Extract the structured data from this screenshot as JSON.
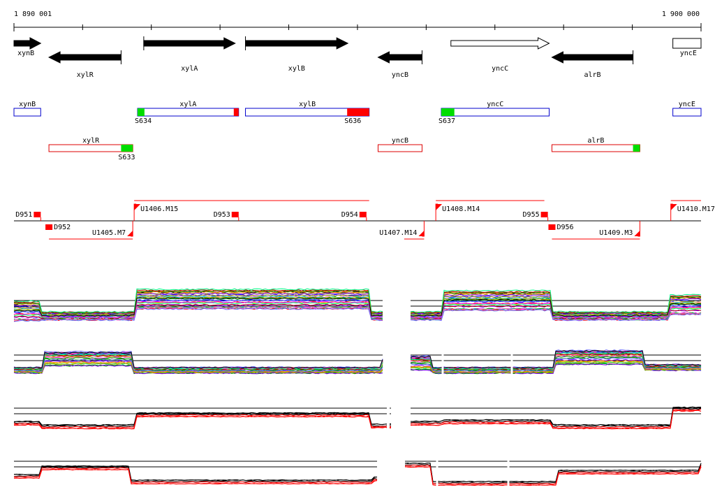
{
  "ruler": {
    "start_label": "1 890 001",
    "end_label": "1 900 000"
  },
  "genes": [
    {
      "name": "xynB",
      "strand": "+",
      "start": 1890001,
      "end": 1890390,
      "filled": true
    },
    {
      "name": "xylR",
      "strand": "-",
      "start": 1890510,
      "end": 1891560,
      "filled": true
    },
    {
      "name": "xylA",
      "strand": "+",
      "start": 1891890,
      "end": 1893220,
      "filled": true
    },
    {
      "name": "xylB",
      "strand": "+",
      "start": 1893370,
      "end": 1894860,
      "filled": true
    },
    {
      "name": "yncB",
      "strand": "-",
      "start": 1895300,
      "end": 1895940,
      "filled": true
    },
    {
      "name": "yncC",
      "strand": "+",
      "start": 1896360,
      "end": 1897790,
      "filled": false
    },
    {
      "name": "alrB",
      "strand": "-",
      "start": 1897830,
      "end": 1899010,
      "filled": true
    },
    {
      "name": "yncE",
      "strand": "+",
      "start": 1899590,
      "end": 1900000,
      "filled": false
    }
  ],
  "transcripts_upper": [
    {
      "name": "xynB",
      "start": 1890001,
      "end": 1890390
    },
    {
      "name": "xylA",
      "start": 1891800,
      "end": 1893270
    },
    {
      "name": "xylB",
      "start": 1893370,
      "end": 1895170
    },
    {
      "name": "yncC",
      "start": 1896220,
      "end": 1897790
    },
    {
      "name": "yncE",
      "start": 1899590,
      "end": 1900000
    }
  ],
  "transcripts_lower": [
    {
      "name": "xylR",
      "start": 1890510,
      "end": 1891730
    },
    {
      "name": "yncB",
      "start": 1895300,
      "end": 1895940
    },
    {
      "name": "alrB",
      "start": 1897830,
      "end": 1899110
    }
  ],
  "signals_upper": [
    {
      "label": "S634",
      "start": 1891800,
      "end": 1891900,
      "color": "#00dd00"
    },
    {
      "label": "",
      "start": 1893200,
      "end": 1893270,
      "color": "#ff0000"
    },
    {
      "label": "S636",
      "start": 1894850,
      "end": 1895170,
      "color": "#ff0000"
    },
    {
      "label": "S637",
      "start": 1896220,
      "end": 1896410,
      "color": "#00dd00"
    }
  ],
  "signals_lower": [
    {
      "label": "S633",
      "start": 1891560,
      "end": 1891730,
      "color": "#00dd00"
    },
    {
      "label": "",
      "start": 1899010,
      "end": 1899110,
      "color": "#00dd00"
    }
  ],
  "segments": [
    {
      "label": "D951",
      "pos": 1890340,
      "side": "above"
    },
    {
      "label": "D952",
      "pos": 1890510,
      "side": "below"
    },
    {
      "label": "D953",
      "pos": 1893220,
      "side": "above"
    },
    {
      "label": "D954",
      "pos": 1895080,
      "side": "above"
    },
    {
      "label": "D955",
      "pos": 1897720,
      "side": "above"
    },
    {
      "label": "D956",
      "pos": 1897830,
      "side": "below"
    }
  ],
  "upregions": [
    {
      "label": "U1405.M7",
      "start": 1890510,
      "end": 1891730,
      "side": "below"
    },
    {
      "label": "U1406.M15",
      "start": 1891750,
      "end": 1895170,
      "side": "above"
    },
    {
      "label": "U1407.M14",
      "start": 1895680,
      "end": 1895970,
      "side": "below"
    },
    {
      "label": "U1408.M14",
      "start": 1896140,
      "end": 1897720,
      "side": "above"
    },
    {
      "label": "U1409.M3",
      "start": 1897830,
      "end": 1899110,
      "side": "below"
    },
    {
      "label": "U1410.M17",
      "start": 1899560,
      "end": 1900000,
      "side": "above"
    }
  ],
  "colors": {
    "gene_fill": "#000000",
    "transcript_upper": "#0000cc",
    "transcript_lower": "#dd0000",
    "region_red": "#ff0000",
    "track_black": "#000000",
    "track_red": "#ff0000"
  }
}
